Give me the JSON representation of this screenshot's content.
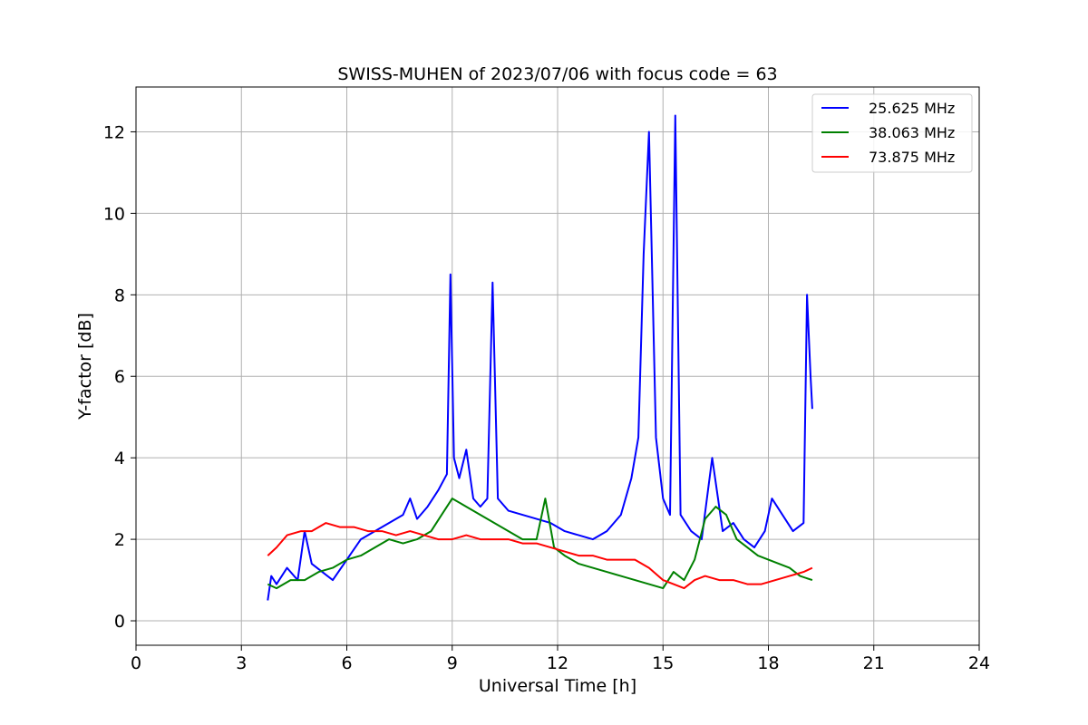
{
  "chart_data": {
    "type": "line",
    "title": "SWISS-MUHEN of 2023/07/06 with focus code = 63",
    "xlabel": "Universal Time [h]",
    "ylabel": "Y-factor [dB]",
    "xlim": [
      0,
      24
    ],
    "ylim": [
      -0.6,
      13.1
    ],
    "xticks": [
      0,
      3,
      6,
      9,
      12,
      15,
      18,
      21,
      24
    ],
    "yticks": [
      0,
      2,
      4,
      6,
      8,
      10,
      12
    ],
    "grid": true,
    "legend_position": "top-right",
    "series": [
      {
        "name": "25.625 MHz",
        "color": "#0000ff",
        "x": [
          3.75,
          3.85,
          4.0,
          4.3,
          4.6,
          4.8,
          5.0,
          5.3,
          5.6,
          6.0,
          6.4,
          6.8,
          7.2,
          7.6,
          7.8,
          8.0,
          8.3,
          8.6,
          8.85,
          8.95,
          9.05,
          9.2,
          9.4,
          9.6,
          9.8,
          10.0,
          10.15,
          10.3,
          10.6,
          11.0,
          11.4,
          11.8,
          12.2,
          12.6,
          13.0,
          13.4,
          13.8,
          14.1,
          14.3,
          14.45,
          14.6,
          14.8,
          15.0,
          15.2,
          15.35,
          15.5,
          15.8,
          16.1,
          16.4,
          16.7,
          17.0,
          17.3,
          17.6,
          17.9,
          18.1,
          18.4,
          18.7,
          19.0,
          19.1,
          19.2,
          19.25
        ],
        "y": [
          0.5,
          1.1,
          0.9,
          1.3,
          1.0,
          2.2,
          1.4,
          1.2,
          1.0,
          1.5,
          2.0,
          2.2,
          2.4,
          2.6,
          3.0,
          2.5,
          2.8,
          3.2,
          3.6,
          8.5,
          4.0,
          3.5,
          4.2,
          3.0,
          2.8,
          3.0,
          8.3,
          3.0,
          2.7,
          2.6,
          2.5,
          2.4,
          2.2,
          2.1,
          2.0,
          2.2,
          2.6,
          3.5,
          4.5,
          9.0,
          12.0,
          4.5,
          3.0,
          2.6,
          12.4,
          2.6,
          2.2,
          2.0,
          4.0,
          2.2,
          2.4,
          2.0,
          1.8,
          2.2,
          3.0,
          2.6,
          2.2,
          2.4,
          8.0,
          6.0,
          5.2
        ]
      },
      {
        "name": "38.063 MHz",
        "color": "#008000",
        "x": [
          3.75,
          4.0,
          4.4,
          4.8,
          5.2,
          5.6,
          6.0,
          6.4,
          6.8,
          7.2,
          7.6,
          8.0,
          8.4,
          8.7,
          9.0,
          9.4,
          9.8,
          10.2,
          10.6,
          11.0,
          11.4,
          11.65,
          11.9,
          12.2,
          12.6,
          13.0,
          13.4,
          13.8,
          14.2,
          14.6,
          15.0,
          15.3,
          15.6,
          15.9,
          16.2,
          16.5,
          16.8,
          17.1,
          17.4,
          17.7,
          18.0,
          18.3,
          18.6,
          18.9,
          19.25
        ],
        "y": [
          0.9,
          0.8,
          1.0,
          1.0,
          1.2,
          1.3,
          1.5,
          1.6,
          1.8,
          2.0,
          1.9,
          2.0,
          2.2,
          2.6,
          3.0,
          2.8,
          2.6,
          2.4,
          2.2,
          2.0,
          2.0,
          3.0,
          1.8,
          1.6,
          1.4,
          1.3,
          1.2,
          1.1,
          1.0,
          0.9,
          0.8,
          1.2,
          1.0,
          1.5,
          2.5,
          2.8,
          2.6,
          2.0,
          1.8,
          1.6,
          1.5,
          1.4,
          1.3,
          1.1,
          1.0
        ]
      },
      {
        "name": "73.875 MHz",
        "color": "#ff0000",
        "x": [
          3.75,
          4.0,
          4.3,
          4.7,
          5.0,
          5.4,
          5.8,
          6.2,
          6.6,
          7.0,
          7.4,
          7.8,
          8.2,
          8.6,
          9.0,
          9.4,
          9.8,
          10.2,
          10.6,
          11.0,
          11.4,
          11.8,
          12.2,
          12.6,
          13.0,
          13.4,
          13.8,
          14.2,
          14.6,
          15.0,
          15.3,
          15.6,
          15.9,
          16.2,
          16.6,
          17.0,
          17.4,
          17.8,
          18.2,
          18.6,
          19.0,
          19.25
        ],
        "y": [
          1.6,
          1.8,
          2.1,
          2.2,
          2.2,
          2.4,
          2.3,
          2.3,
          2.2,
          2.2,
          2.1,
          2.2,
          2.1,
          2.0,
          2.0,
          2.1,
          2.0,
          2.0,
          2.0,
          1.9,
          1.9,
          1.8,
          1.7,
          1.6,
          1.6,
          1.5,
          1.5,
          1.5,
          1.3,
          1.0,
          0.9,
          0.8,
          1.0,
          1.1,
          1.0,
          1.0,
          0.9,
          0.9,
          1.0,
          1.1,
          1.2,
          1.3
        ]
      }
    ]
  }
}
